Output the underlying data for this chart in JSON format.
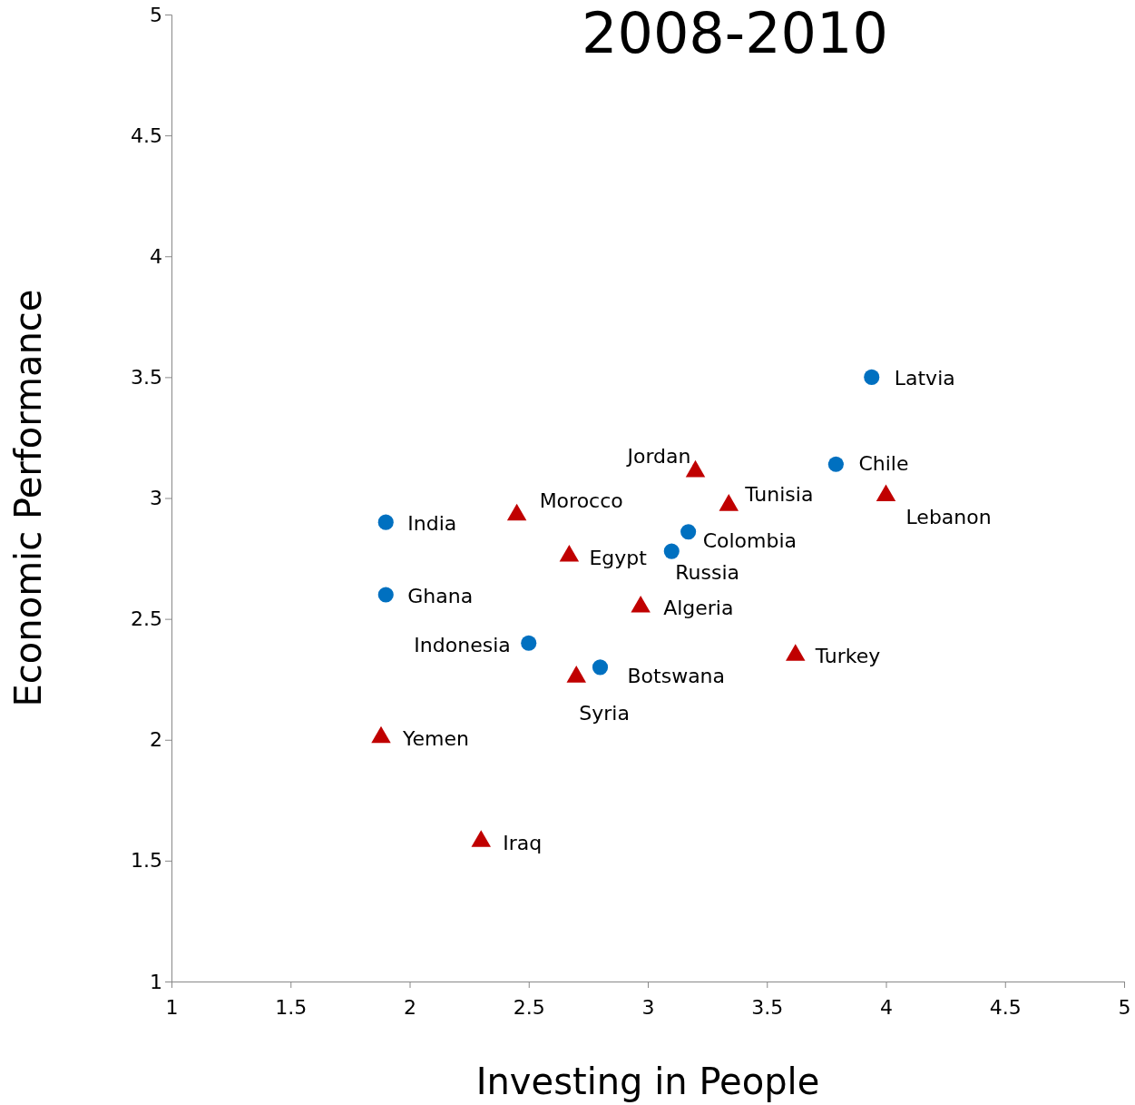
{
  "chart_data": {
    "type": "scatter",
    "title": "2008-2010",
    "xlabel": "Investing in People",
    "ylabel": "Economic Performance",
    "xlim": [
      1,
      5
    ],
    "ylim": [
      1,
      5
    ],
    "xticks": [
      1,
      1.5,
      2,
      2.5,
      3,
      3.5,
      4,
      4.5,
      5
    ],
    "yticks": [
      1,
      1.5,
      2,
      2.5,
      3,
      3.5,
      4,
      4.5,
      5
    ],
    "grid": false,
    "series": [
      {
        "color": "#0070c0",
        "marker": "circle",
        "x": [
          1.9,
          1.9,
          2.5,
          2.8,
          3.1,
          3.17,
          3.79,
          3.94
        ],
        "values": [
          2.9,
          2.6,
          2.4,
          2.3,
          2.78,
          2.86,
          3.14,
          3.5
        ]
      },
      {
        "color": "#c00000",
        "marker": "triangle",
        "x": [
          2.45,
          2.67,
          3.2,
          3.34,
          4.0,
          2.97,
          3.62,
          2.7,
          1.88,
          2.3
        ],
        "values": [
          2.93,
          2.76,
          3.11,
          2.97,
          3.01,
          2.55,
          2.35,
          2.26,
          2.01,
          1.58
        ]
      }
    ],
    "annotations": [
      {
        "text": "India",
        "x": 1.9,
        "y": 2.9
      },
      {
        "text": "Ghana",
        "x": 1.9,
        "y": 2.6
      },
      {
        "text": "Indonesia",
        "x": 2.5,
        "y": 2.4
      },
      {
        "text": "Botswana",
        "x": 2.8,
        "y": 2.3
      },
      {
        "text": "Russia",
        "x": 3.1,
        "y": 2.78
      },
      {
        "text": "Colombia",
        "x": 3.17,
        "y": 2.86
      },
      {
        "text": "Chile",
        "x": 3.79,
        "y": 3.14
      },
      {
        "text": "Latvia",
        "x": 3.94,
        "y": 3.5
      },
      {
        "text": "Morocco",
        "x": 2.45,
        "y": 2.93
      },
      {
        "text": "Egypt",
        "x": 2.67,
        "y": 2.76
      },
      {
        "text": "Jordan",
        "x": 3.2,
        "y": 3.11
      },
      {
        "text": "Tunisia",
        "x": 3.34,
        "y": 2.97
      },
      {
        "text": "Lebanon",
        "x": 4.0,
        "y": 3.01
      },
      {
        "text": "Algeria",
        "x": 2.97,
        "y": 2.55
      },
      {
        "text": "Turkey",
        "x": 3.62,
        "y": 2.35
      },
      {
        "text": "Syria",
        "x": 2.7,
        "y": 2.26
      },
      {
        "text": "Yemen",
        "x": 1.88,
        "y": 2.01
      },
      {
        "text": "Iraq",
        "x": 2.3,
        "y": 1.58
      }
    ]
  }
}
